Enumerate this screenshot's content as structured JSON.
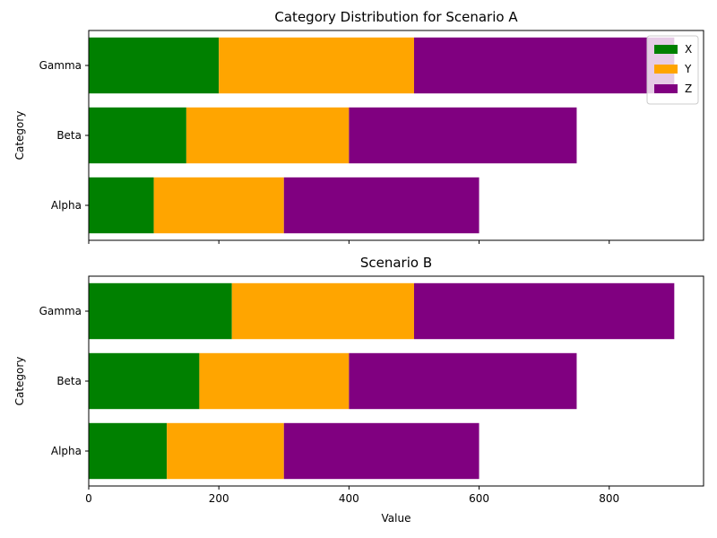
{
  "chart_data": [
    {
      "type": "bar",
      "orientation": "horizontal",
      "stacked": true,
      "title": "Category Distribution for Scenario A",
      "xlabel": "",
      "ylabel": "Category",
      "categories": [
        "Alpha",
        "Beta",
        "Gamma"
      ],
      "series": [
        {
          "name": "X",
          "color": "#008000",
          "values": [
            100,
            150,
            200
          ]
        },
        {
          "name": "Y",
          "color": "#FFA500",
          "values": [
            200,
            250,
            300
          ]
        },
        {
          "name": "Z",
          "color": "#800080",
          "values": [
            300,
            350,
            400
          ]
        }
      ],
      "xlim": [
        0,
        945
      ],
      "xticks": [
        0,
        200,
        400,
        600,
        800
      ],
      "xtick_labels_visible": false,
      "grid": false,
      "legend": "top-right"
    },
    {
      "type": "bar",
      "orientation": "horizontal",
      "stacked": true,
      "title": "Scenario B",
      "xlabel": "Value",
      "ylabel": "Category",
      "categories": [
        "Alpha",
        "Beta",
        "Gamma"
      ],
      "series": [
        {
          "color": "#008000",
          "values": [
            120,
            170,
            220
          ]
        },
        {
          "color": "#FFA500",
          "values": [
            180,
            230,
            280
          ]
        },
        {
          "color": "#800080",
          "values": [
            300,
            350,
            400
          ]
        }
      ],
      "xlim": [
        0,
        945
      ],
      "xticks": [
        0,
        200,
        400,
        600,
        800
      ],
      "xtick_labels_visible": true,
      "grid": false,
      "legend": "none"
    }
  ]
}
